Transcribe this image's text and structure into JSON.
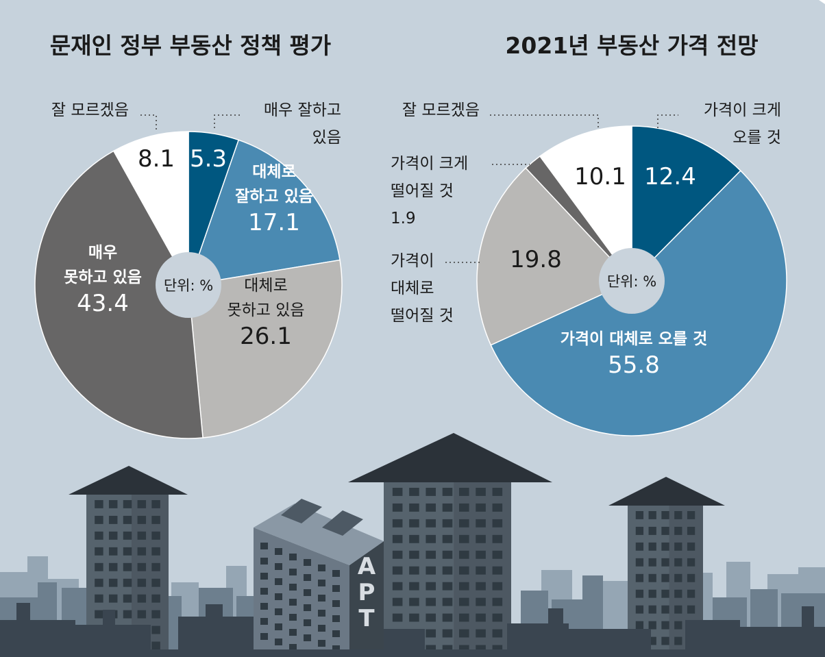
{
  "charts": [
    {
      "title": "문재인 정부 부동산 정책 평가",
      "unit_label": "단위: %",
      "chart_data": {
        "type": "pie",
        "title": "문재인 정부 부동산 정책 평가",
        "unit": "단위: %",
        "start": "top, clockwise",
        "categories": [
          "매우 잘하고 있음",
          "대체로 잘하고 있음",
          "대체로 못하고 있음",
          "매우 못하고 있음",
          "잘 모르겠음"
        ],
        "values": [
          5.3,
          17.1,
          26.1,
          43.4,
          8.1
        ],
        "colors": [
          "#005780",
          "#4a8ab2",
          "#b9b8b6",
          "#676666",
          "#ffffff"
        ]
      },
      "labels": [
        {
          "lines": [
            "5.3"
          ],
          "color": "#ffffff",
          "bold": false
        },
        {
          "lines": [
            "대체로",
            "잘하고 있음",
            "17.1"
          ],
          "color": "#ffffff",
          "bold": true
        },
        {
          "lines": [
            "대체로",
            "못하고 있음",
            "26.1"
          ],
          "color": "#1a1a1a",
          "bold": false
        },
        {
          "lines": [
            "매우",
            "못하고 있음",
            "43.4"
          ],
          "color": "#ffffff",
          "bold": true
        },
        {
          "lines": [
            "8.1"
          ],
          "color": "#1a1a1a",
          "bold": false
        }
      ],
      "callouts": [
        {
          "lines": [
            "매우 잘하고",
            "있음"
          ]
        },
        {
          "lines": [
            "잘 모르겠음"
          ]
        }
      ]
    },
    {
      "title": "2021년 부동산 가격 전망",
      "unit_label": "단위: %",
      "chart_data": {
        "type": "pie",
        "title": "2021년 부동산 가격 전망",
        "unit": "단위: %",
        "start": "top, clockwise",
        "categories": [
          "가격이 크게 오를 것",
          "가격이 대체로 오를 것",
          "가격이 대체로 떨어질 것",
          "가격이 크게 떨어질 것",
          "잘 모르겠음"
        ],
        "values": [
          12.4,
          55.8,
          19.8,
          1.9,
          10.1
        ],
        "colors": [
          "#005780",
          "#4a8ab2",
          "#b9b8b6",
          "#676666",
          "#ffffff"
        ]
      },
      "labels": [
        {
          "lines": [
            "12.4"
          ],
          "color": "#ffffff",
          "bold": false
        },
        {
          "lines": [
            "가격이 대체로 오를 것",
            "55.8"
          ],
          "color": "#ffffff",
          "bold": true
        },
        {
          "lines": [
            "19.8"
          ],
          "color": "#1a1a1a",
          "bold": false
        },
        {
          "lines": [],
          "color": "#1a1a1a",
          "bold": false
        },
        {
          "lines": [
            "10.1"
          ],
          "color": "#1a1a1a",
          "bold": false
        }
      ],
      "callouts": [
        {
          "lines": [
            "가격이 크게",
            "오를 것"
          ]
        },
        {
          "lines": [
            "가격이",
            "대체로",
            "떨어질 것"
          ]
        },
        {
          "lines": [
            "가격이 크게",
            "떨어질 것",
            "1.9"
          ]
        },
        {
          "lines": [
            "잘 모르겠음"
          ]
        }
      ]
    }
  ],
  "illustration": {
    "sign_letters": [
      "A",
      "P",
      "T"
    ],
    "colors": {
      "background": "#c6d2dc",
      "skyline_far": "#95a6b4",
      "skyline_mid": "#6d7f8e",
      "skyline_near": "#3a4550",
      "building": "#56636d",
      "building_dark": "#3b454d",
      "window": "#2f3a42",
      "roof": "#2b3239"
    }
  }
}
